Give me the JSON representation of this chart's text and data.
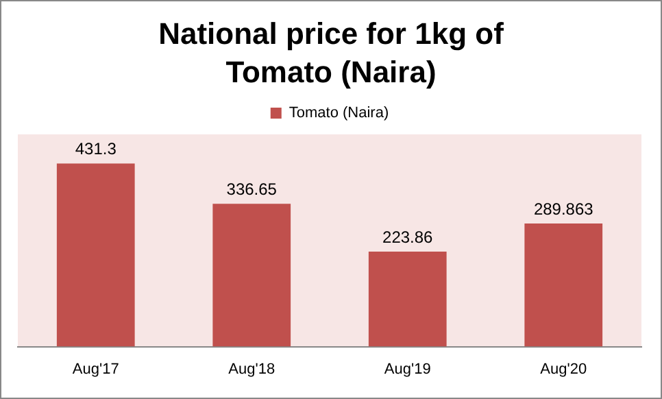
{
  "chart_data": {
    "type": "bar",
    "title": "National price for 1kg of Tomato (Naira)",
    "categories": [
      "Aug'17",
      "Aug'18",
      "Aug'19",
      "Aug'20"
    ],
    "series": [
      {
        "name": "Tomato (Naira)",
        "color": "#c0504d",
        "values": [
          431.3,
          336.65,
          223.86,
          289.863
        ]
      }
    ],
    "ylim": [
      0,
      500
    ],
    "tick_labels": "x",
    "grid": false,
    "legend": "top",
    "data_labels": true
  }
}
